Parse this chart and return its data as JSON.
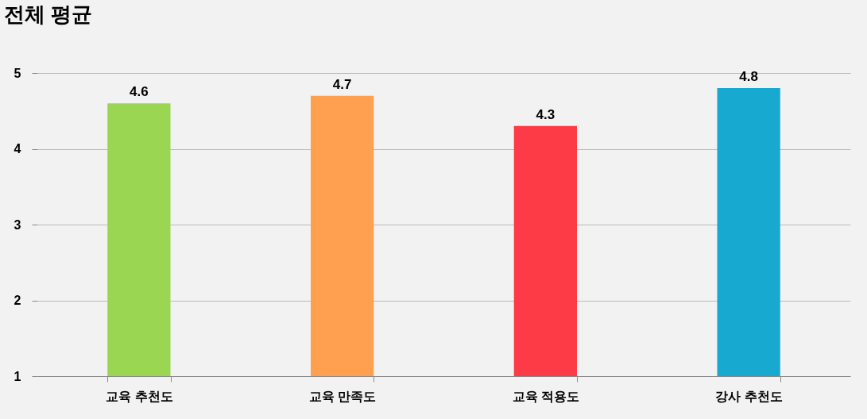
{
  "chart_data": {
    "type": "bar",
    "title": "전체 평균",
    "categories": [
      "교육 추천도",
      "교육 만족도",
      "교육 적용도",
      "강사 추천도"
    ],
    "values": [
      4.6,
      4.7,
      4.3,
      4.8
    ],
    "colors": [
      "#9ad651",
      "#ffa050",
      "#fc3b46",
      "#17a9cf"
    ],
    "ylim": [
      1,
      5
    ],
    "yticks": [
      1,
      2,
      3,
      4,
      5
    ],
    "grid": "y",
    "data_labels": true
  }
}
